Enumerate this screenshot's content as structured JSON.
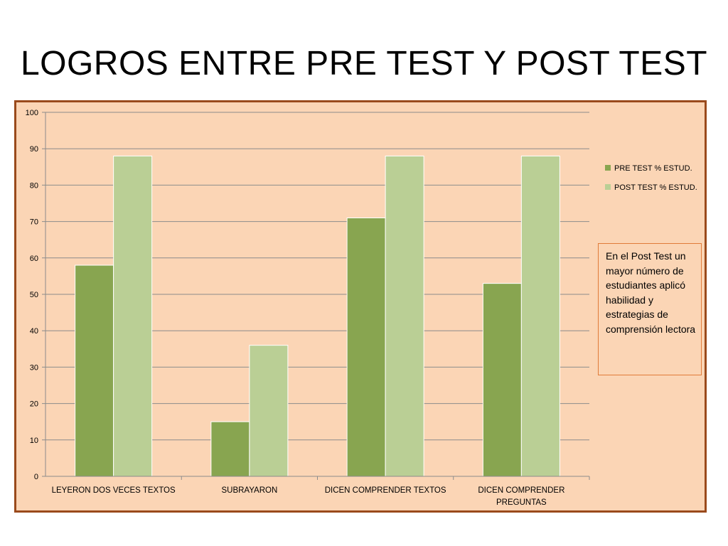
{
  "slide": {
    "title": "LOGROS ENTRE PRE TEST Y POST TEST"
  },
  "colors": {
    "plot_background": "#fbd5b5",
    "frame_border": "#9a4a1c",
    "gridline": "#8c8c8c",
    "pre_test": "#88a550",
    "post_test": "#bacf95",
    "note_border": "#e07b39"
  },
  "note": {
    "text": "En el Post Test un mayor número de estudiantes aplicó habilidad y estrategias de comprensión lectora"
  },
  "chart_data": {
    "type": "bar",
    "title": "",
    "xlabel": "",
    "ylabel": "",
    "ylim": [
      0,
      100
    ],
    "yticks": [
      0,
      10,
      20,
      30,
      40,
      50,
      60,
      70,
      80,
      90,
      100
    ],
    "grid": true,
    "legend_position": "right",
    "categories": [
      [
        "LEYERON DOS VECES TEXTOS"
      ],
      [
        "SUBRAYARON"
      ],
      [
        "DICEN COMPRENDER TEXTOS"
      ],
      [
        "DICEN COMPRENDER",
        "PREGUNTAS"
      ]
    ],
    "series": [
      {
        "name": "PRE TEST % ESTUD.",
        "color": "#88a550",
        "values": [
          58,
          15,
          71,
          53
        ]
      },
      {
        "name": "POST TEST % ESTUD.",
        "color": "#bacf95",
        "values": [
          88,
          36,
          88,
          88
        ]
      }
    ]
  }
}
